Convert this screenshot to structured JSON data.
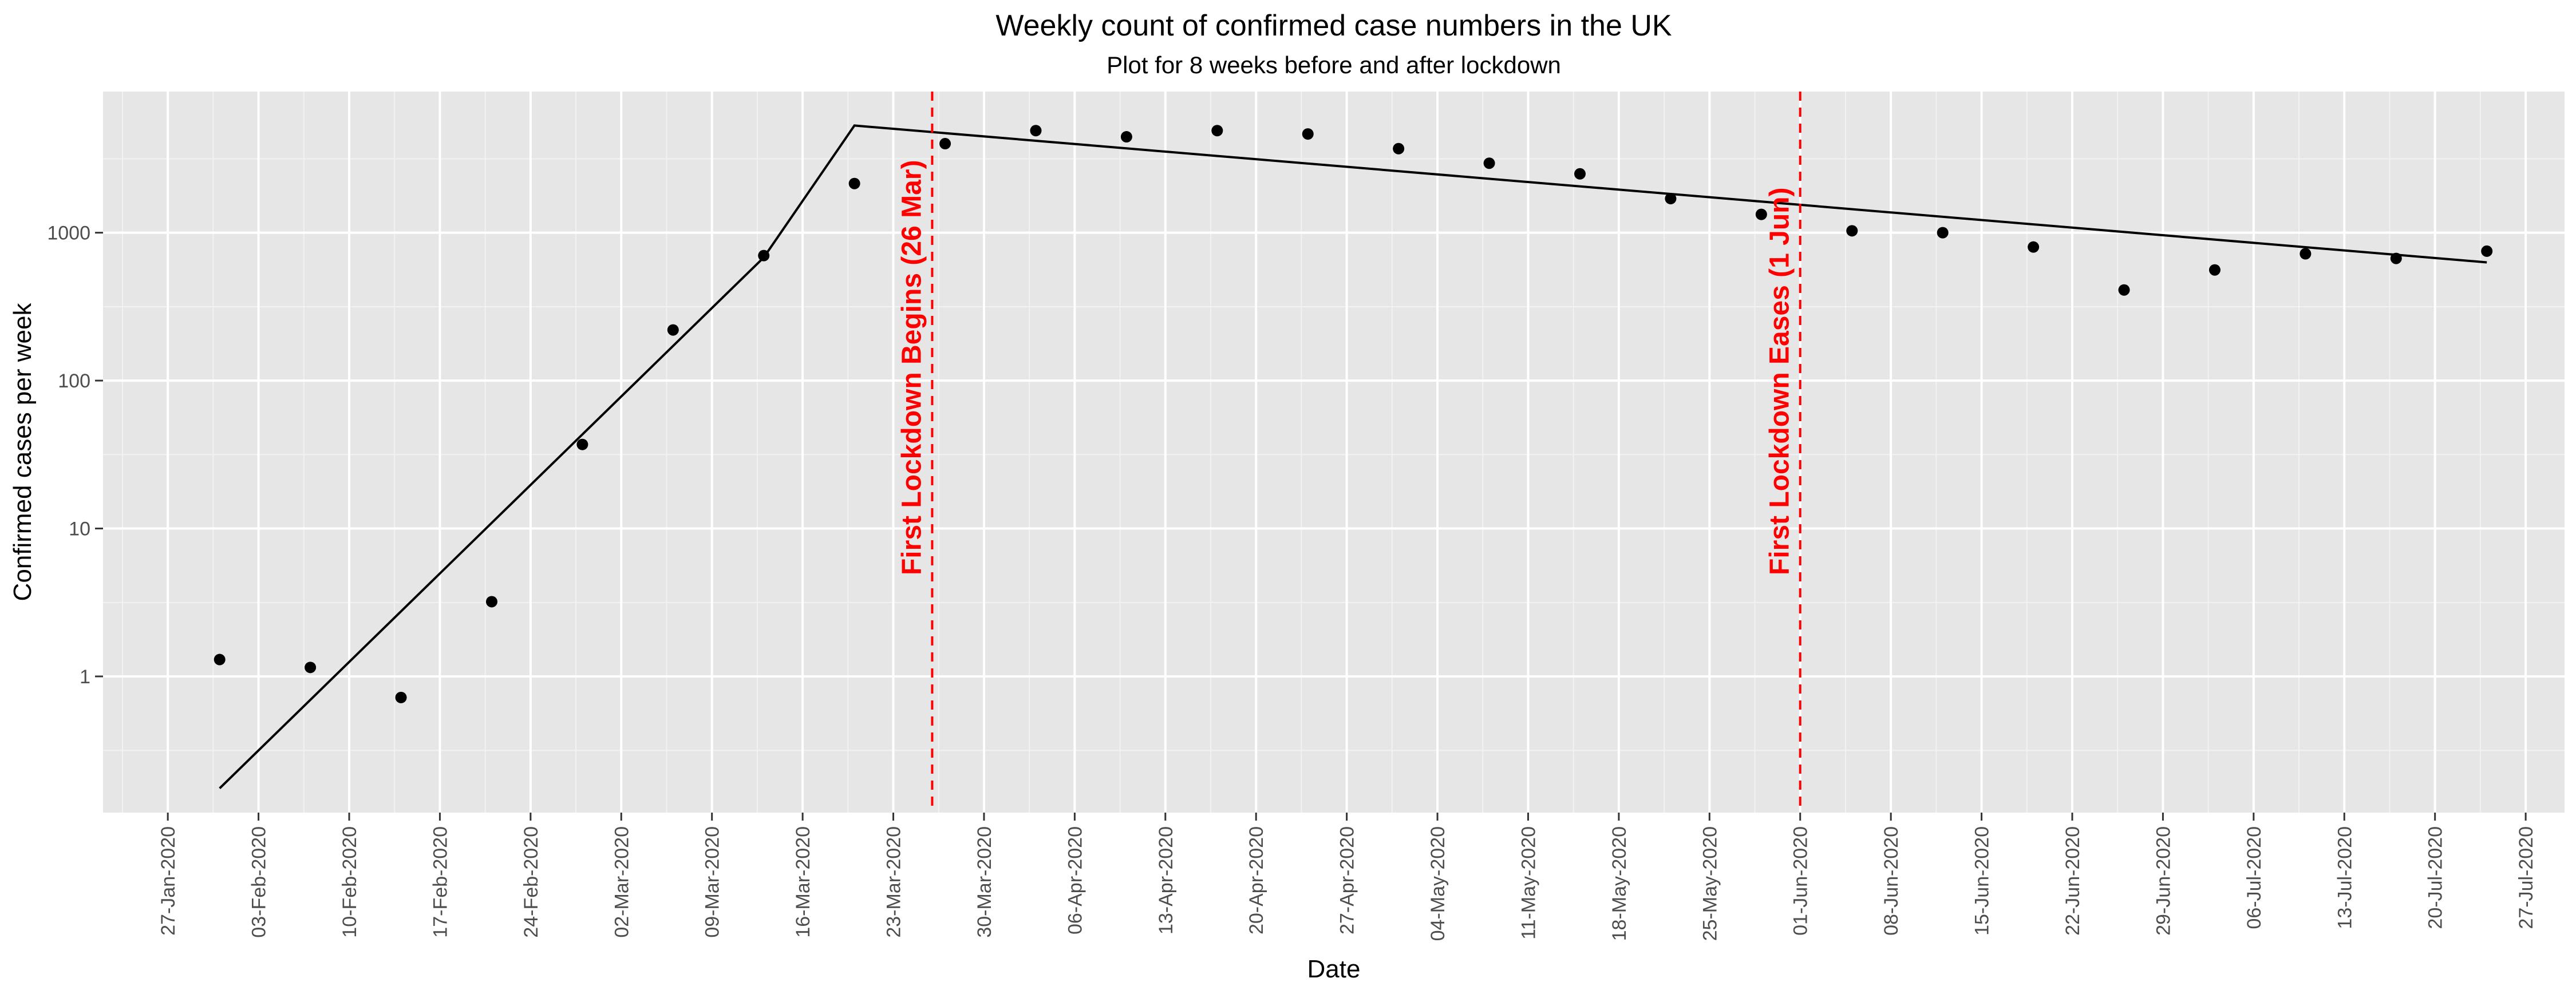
{
  "chart_data": {
    "type": "scatter",
    "title": "Weekly count of confirmed case numbers in the UK",
    "subtitle": "Plot for 8 weeks before and after lockdown",
    "xlabel": "Date",
    "ylabel": "Confirmed cases per week",
    "y_scale": "log10",
    "xlim": [
      "2020-01-22",
      "2020-07-30"
    ],
    "ylim": [
      0.12,
      9000
    ],
    "x_ticks": [
      "27-Jan-2020",
      "03-Feb-2020",
      "10-Feb-2020",
      "17-Feb-2020",
      "24-Feb-2020",
      "02-Mar-2020",
      "09-Mar-2020",
      "16-Mar-2020",
      "23-Mar-2020",
      "30-Mar-2020",
      "06-Apr-2020",
      "13-Apr-2020",
      "20-Apr-2020",
      "27-Apr-2020",
      "04-May-2020",
      "11-May-2020",
      "18-May-2020",
      "25-May-2020",
      "01-Jun-2020",
      "08-Jun-2020",
      "15-Jun-2020",
      "22-Jun-2020",
      "29-Jun-2020",
      "06-Jul-2020",
      "13-Jul-2020",
      "20-Jul-2020",
      "27-Jul-2020"
    ],
    "x_tick_dates": [
      "2020-01-27",
      "2020-02-03",
      "2020-02-10",
      "2020-02-17",
      "2020-02-24",
      "2020-03-02",
      "2020-03-09",
      "2020-03-16",
      "2020-03-23",
      "2020-03-30",
      "2020-04-06",
      "2020-04-13",
      "2020-04-20",
      "2020-04-27",
      "2020-05-04",
      "2020-05-11",
      "2020-05-18",
      "2020-05-25",
      "2020-06-01",
      "2020-06-08",
      "2020-06-15",
      "2020-06-22",
      "2020-06-29",
      "2020-07-06",
      "2020-07-13",
      "2020-07-20",
      "2020-07-27"
    ],
    "y_ticks": [
      1,
      10,
      100,
      1000
    ],
    "y_tick_labels": [
      "1",
      "10",
      "100",
      "1000"
    ],
    "points": [
      {
        "x": "2020-01-31",
        "y": 1.3
      },
      {
        "x": "2020-02-07",
        "y": 1.15
      },
      {
        "x": "2020-02-14",
        "y": 0.72
      },
      {
        "x": "2020-02-21",
        "y": 3.2
      },
      {
        "x": "2020-02-28",
        "y": 37
      },
      {
        "x": "2020-03-06",
        "y": 220
      },
      {
        "x": "2020-03-13",
        "y": 700
      },
      {
        "x": "2020-03-20",
        "y": 2150
      },
      {
        "x": "2020-03-27",
        "y": 4000
      },
      {
        "x": "2020-04-03",
        "y": 4900
      },
      {
        "x": "2020-04-10",
        "y": 4450
      },
      {
        "x": "2020-04-17",
        "y": 4900
      },
      {
        "x": "2020-04-24",
        "y": 4650
      },
      {
        "x": "2020-05-01",
        "y": 3700
      },
      {
        "x": "2020-05-08",
        "y": 2950
      },
      {
        "x": "2020-05-15",
        "y": 2500
      },
      {
        "x": "2020-05-22",
        "y": 1700
      },
      {
        "x": "2020-05-29",
        "y": 1330
      },
      {
        "x": "2020-06-05",
        "y": 1030
      },
      {
        "x": "2020-06-12",
        "y": 1000
      },
      {
        "x": "2020-06-19",
        "y": 800
      },
      {
        "x": "2020-06-26",
        "y": 410
      },
      {
        "x": "2020-07-03",
        "y": 560
      },
      {
        "x": "2020-07-10",
        "y": 720
      },
      {
        "x": "2020-07-17",
        "y": 670
      },
      {
        "x": "2020-07-24",
        "y": 750
      }
    ],
    "fit_line": [
      {
        "x": "2020-01-31",
        "y": 0.175
      },
      {
        "x": "2020-03-13",
        "y": 680
      },
      {
        "x": "2020-03-20",
        "y": 5300
      },
      {
        "x": "2020-07-24",
        "y": 630
      }
    ],
    "vlines": [
      {
        "x": "2020-03-26",
        "label": "First Lockdown Begins (26 Mar)",
        "color": "#ff0000"
      },
      {
        "x": "2020-06-01",
        "label": "First Lockdown Eases (1 Jun)",
        "color": "#ff0000"
      }
    ],
    "colors": {
      "panel": "#e6e6e6",
      "grid_major": "#ffffff",
      "grid_minor": "#f2f2f2",
      "point": "#000000",
      "line": "#000000"
    },
    "grid": true,
    "legend": "none"
  }
}
